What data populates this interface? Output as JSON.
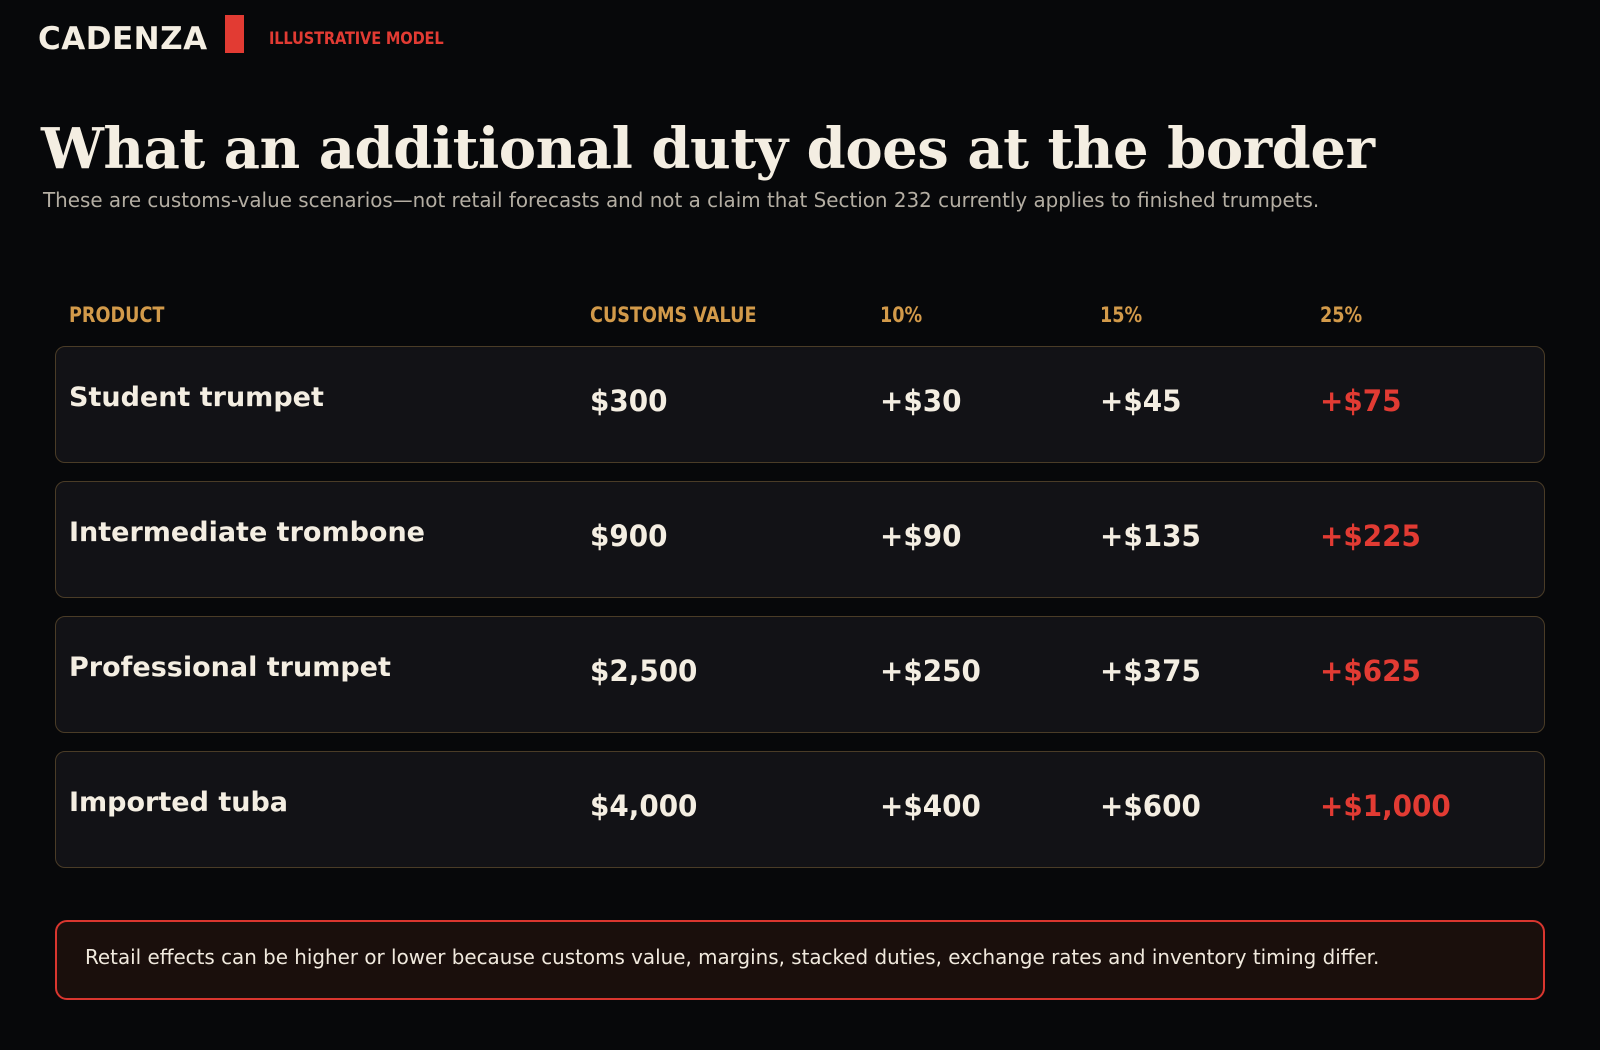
{
  "header": {
    "brand": "CADENZA",
    "tag": "ILLUSTRATIVE MODEL",
    "accent_color": "#e23b33"
  },
  "title": "What an additional duty does at the border",
  "subtitle": "These are customs-value scenarios—not retail forecasts and not a claim that Section 232 currently applies to finished trumpets.",
  "table": {
    "columns": [
      "PRODUCT",
      "CUSTOMS VALUE",
      "10%",
      "15%",
      "25%"
    ],
    "header_color": "#d29a4a",
    "highlight_color": "#e23b33",
    "rows": [
      {
        "product": "Student trumpet",
        "customs_value": "$300",
        "d10": "+$30",
        "d15": "+$45",
        "d25": "+$75"
      },
      {
        "product": "Intermediate trombone",
        "customs_value": "$900",
        "d10": "+$90",
        "d15": "+$135",
        "d25": "+$225"
      },
      {
        "product": "Professional trumpet",
        "customs_value": "$2,500",
        "d10": "+$250",
        "d15": "+$375",
        "d25": "+$625"
      },
      {
        "product": "Imported tuba",
        "customs_value": "$4,000",
        "d10": "+$400",
        "d15": "+$600",
        "d25": "+$1,000"
      }
    ]
  },
  "note": "Retail effects can be higher or lower because customs value, margins, stacked duties, exchange rates and inventory timing differ."
}
